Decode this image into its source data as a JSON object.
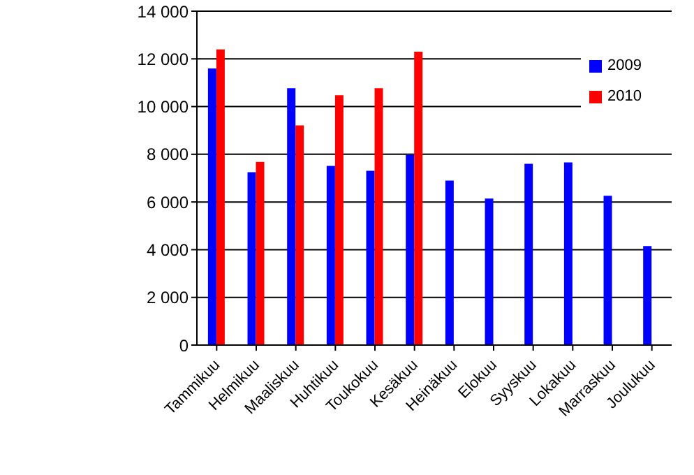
{
  "chart_data": {
    "type": "bar",
    "categories": [
      "Tammikuu",
      "Helmikuu",
      "Maaliskuu",
      "Huhtikuu",
      "Toukokuu",
      "Kesäkuu",
      "Heinäkuu",
      "Elokuu",
      "Syyskuu",
      "Lokakuu",
      "Marraskuu",
      "Joulukuu"
    ],
    "series": [
      {
        "name": "2009",
        "color": "#0000ff",
        "values": [
          11600,
          7250,
          10770,
          7510,
          7310,
          7980,
          6900,
          6140,
          7600,
          7660,
          6260,
          4150
        ]
      },
      {
        "name": "2010",
        "color": "#ff0000",
        "values": [
          12400,
          7680,
          9210,
          10480,
          10770,
          12300,
          null,
          null,
          null,
          null,
          null,
          null
        ]
      }
    ],
    "ylim": [
      0,
      14000
    ],
    "yticks": [
      {
        "value": 0,
        "label": "0"
      },
      {
        "value": 2000,
        "label": "2 000"
      },
      {
        "value": 4000,
        "label": "4 000"
      },
      {
        "value": 6000,
        "label": "6 000"
      },
      {
        "value": 8000,
        "label": "8 000"
      },
      {
        "value": 10000,
        "label": "10 000"
      },
      {
        "value": 12000,
        "label": "12 000"
      },
      {
        "value": 14000,
        "label": "14 000"
      }
    ],
    "grid": "y",
    "legend": "top right"
  }
}
